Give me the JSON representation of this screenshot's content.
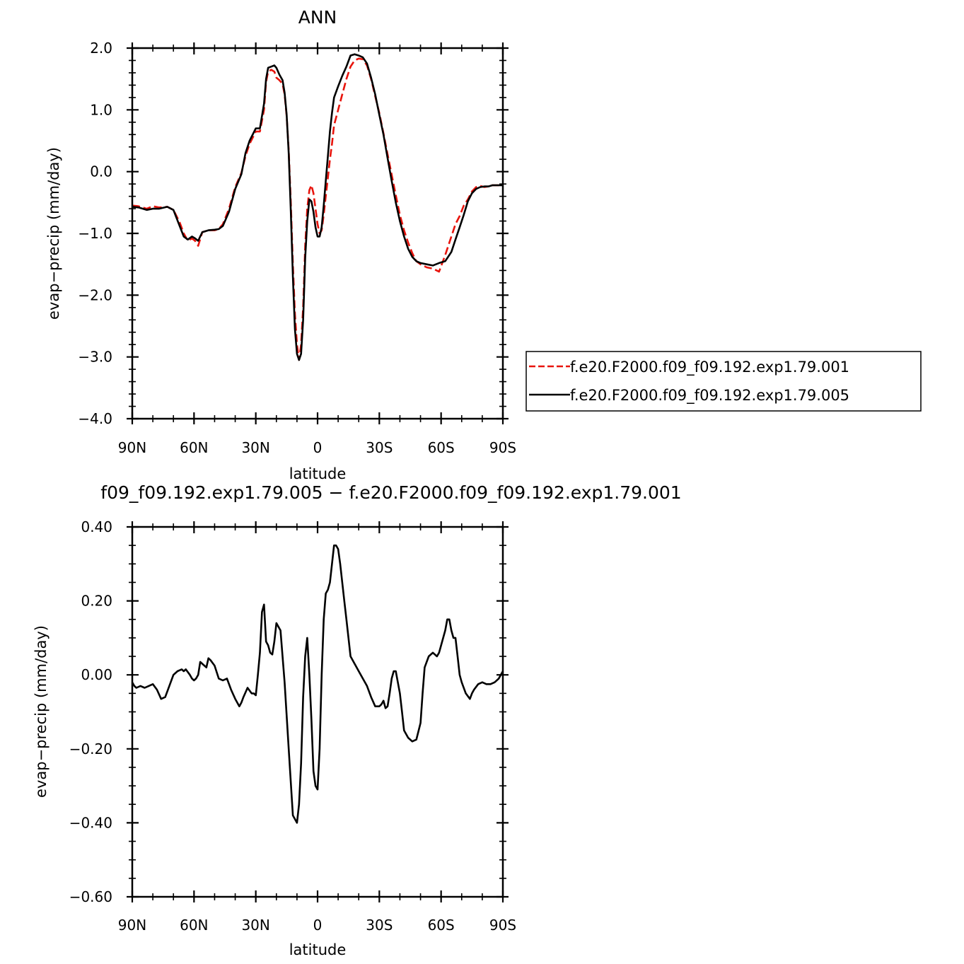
{
  "chart_data": [
    {
      "type": "line",
      "title": "ANN",
      "xlabel": "latitude",
      "ylabel": "evap−precip (mm/day)",
      "xlim": [
        90,
        -90
      ],
      "ylim": [
        -4.0,
        2.0
      ],
      "xticks": [
        90,
        60,
        30,
        0,
        -30,
        -60,
        -90
      ],
      "xtick_labels": [
        "90N",
        "60N",
        "30N",
        "0",
        "30S",
        "60S",
        "90S"
      ],
      "yticks": [
        -4.0,
        -3.0,
        -2.0,
        -1.0,
        0.0,
        1.0,
        2.0
      ],
      "ytick_labels": [
        "−4.0",
        "−3.0",
        "−2.0",
        "−1.0",
        "0.0",
        "1.0",
        "2.0"
      ],
      "grid": false,
      "legend_position": "right",
      "series": [
        {
          "name": "f.e20.F2000.f09_f09.192.exp1.79.001",
          "color": "#e8140c",
          "dash": "dashed",
          "x": [
            90,
            87,
            83,
            80,
            77,
            73,
            70,
            67,
            65,
            63,
            61,
            59.5,
            58,
            56,
            53,
            50,
            48,
            46,
            43,
            40,
            37,
            35,
            33,
            30,
            28,
            26,
            25,
            24,
            22.5,
            21,
            20,
            18.5,
            17,
            16,
            15,
            14,
            13,
            12,
            11,
            10,
            9,
            8,
            7,
            6.5,
            6,
            5,
            4,
            3,
            2,
            1,
            0,
            -1,
            -2,
            -3,
            -4,
            -5,
            -6,
            -7,
            -8,
            -10,
            -12,
            -14,
            -16,
            -18,
            -20,
            -22,
            -24,
            -26,
            -28,
            -30,
            -32,
            -34,
            -36,
            -38,
            -40,
            -42,
            -44,
            -46,
            -48,
            -50,
            -53,
            -56,
            -59,
            -62,
            -65,
            -67,
            -69,
            -71,
            -73,
            -75,
            -77,
            -79,
            -81,
            -83,
            -85,
            -87,
            -90
          ],
          "y": [
            -0.55,
            -0.56,
            -0.6,
            -0.56,
            -0.58,
            -0.57,
            -0.62,
            -0.82,
            -1.0,
            -1.12,
            -1.08,
            -1.12,
            -1.2,
            -0.98,
            -0.95,
            -0.95,
            -0.93,
            -0.85,
            -0.6,
            -0.25,
            -0.02,
            0.25,
            0.45,
            0.65,
            0.65,
            1.0,
            1.45,
            1.62,
            1.65,
            1.62,
            1.52,
            1.48,
            1.42,
            1.25,
            0.9,
            0.35,
            -0.5,
            -1.5,
            -2.3,
            -2.8,
            -3.05,
            -2.8,
            -2.2,
            -1.7,
            -1.2,
            -0.6,
            -0.3,
            -0.22,
            -0.35,
            -0.6,
            -0.85,
            -1.0,
            -0.95,
            -0.7,
            -0.4,
            -0.1,
            0.2,
            0.45,
            0.75,
            1.0,
            1.25,
            1.5,
            1.7,
            1.8,
            1.83,
            1.82,
            1.72,
            1.5,
            1.22,
            0.95,
            0.62,
            0.28,
            -0.05,
            -0.38,
            -0.7,
            -0.95,
            -1.15,
            -1.32,
            -1.45,
            -1.5,
            -1.55,
            -1.57,
            -1.62,
            -1.35,
            -1.05,
            -0.85,
            -0.72,
            -0.55,
            -0.45,
            -0.32,
            -0.25,
            -0.23,
            -0.25,
            -0.24,
            -0.22,
            -0.22,
            -0.22
          ]
        },
        {
          "name": "f.e20.F2000.f09_f09.192.exp1.79.005",
          "color": "#000000",
          "dash": "solid",
          "x": [
            90,
            87,
            83,
            80,
            77,
            73,
            70,
            67,
            65,
            63,
            61,
            59.5,
            58,
            56,
            53,
            50,
            48,
            46,
            43,
            40,
            37,
            35,
            33,
            30,
            28,
            26,
            25,
            24,
            22.5,
            21,
            20,
            18.5,
            17,
            16,
            15,
            14,
            13,
            12,
            11,
            10,
            9,
            8,
            7,
            6.5,
            6,
            5,
            4,
            3,
            2,
            1,
            0,
            -1,
            -2,
            -3,
            -4,
            -5,
            -6,
            -7,
            -8,
            -10,
            -12,
            -14,
            -16,
            -18,
            -20,
            -22,
            -24,
            -26,
            -28,
            -30,
            -32,
            -34,
            -36,
            -38,
            -40,
            -42,
            -44,
            -46,
            -48,
            -50,
            -53,
            -56,
            -59,
            -62,
            -65,
            -67,
            -69,
            -71,
            -73,
            -75,
            -77,
            -79,
            -81,
            -83,
            -85,
            -87,
            -90
          ],
          "y": [
            -0.57,
            -0.58,
            -0.62,
            -0.6,
            -0.6,
            -0.57,
            -0.62,
            -0.88,
            -1.05,
            -1.1,
            -1.05,
            -1.08,
            -1.12,
            -0.98,
            -0.95,
            -0.94,
            -0.93,
            -0.88,
            -0.65,
            -0.28,
            -0.04,
            0.3,
            0.5,
            0.7,
            0.7,
            1.1,
            1.5,
            1.68,
            1.7,
            1.72,
            1.68,
            1.57,
            1.48,
            1.28,
            0.92,
            0.3,
            -0.65,
            -1.7,
            -2.55,
            -2.95,
            -3.05,
            -2.95,
            -2.4,
            -1.9,
            -1.4,
            -0.8,
            -0.45,
            -0.48,
            -0.65,
            -0.9,
            -1.05,
            -1.05,
            -0.9,
            -0.55,
            -0.15,
            0.25,
            0.65,
            0.95,
            1.2,
            1.38,
            1.55,
            1.7,
            1.88,
            1.9,
            1.88,
            1.85,
            1.75,
            1.52,
            1.25,
            0.92,
            0.6,
            0.22,
            -0.15,
            -0.5,
            -0.8,
            -1.05,
            -1.25,
            -1.38,
            -1.45,
            -1.48,
            -1.5,
            -1.52,
            -1.48,
            -1.45,
            -1.3,
            -1.1,
            -0.9,
            -0.7,
            -0.48,
            -0.35,
            -0.28,
            -0.25,
            -0.24,
            -0.24,
            -0.22,
            -0.22,
            -0.22
          ]
        }
      ]
    },
    {
      "type": "line",
      "title": "f09_f09.192.exp1.79.005 − f.e20.F2000.f09_f09.192.exp1.79.001",
      "xlabel": "latitude",
      "ylabel": "evap−precip (mm/day)",
      "xlim": [
        90,
        -90
      ],
      "ylim": [
        -0.6,
        0.4
      ],
      "xticks": [
        90,
        60,
        30,
        0,
        -30,
        -60,
        -90
      ],
      "xtick_labels": [
        "90N",
        "60N",
        "30N",
        "0",
        "30S",
        "60S",
        "90S"
      ],
      "yticks": [
        -0.6,
        -0.4,
        -0.2,
        0.0,
        0.2,
        0.4
      ],
      "ytick_labels": [
        "−0.60",
        "−0.40",
        "−0.20",
        "0.00",
        "0.20",
        "0.40"
      ],
      "grid": false,
      "series": [
        {
          "color": "#000000",
          "dash": "solid",
          "x": [
            90,
            89,
            88,
            86,
            84,
            82,
            80,
            78,
            76,
            74,
            72,
            70,
            68,
            66,
            65,
            64,
            62,
            61,
            60,
            59,
            58,
            57,
            56,
            54,
            53,
            52,
            50,
            48,
            46,
            44,
            42,
            40,
            38,
            37,
            36,
            34,
            32,
            31,
            30,
            29,
            28,
            27,
            26,
            25,
            24,
            23,
            22,
            21,
            20,
            18,
            16,
            14,
            12,
            10,
            9,
            8,
            7,
            6,
            5,
            4,
            3,
            2,
            1,
            0,
            -1,
            -2,
            -3,
            -4,
            -5,
            -6,
            -7,
            -8,
            -9,
            -10,
            -11,
            -12,
            -13,
            -14,
            -15,
            -16,
            -18,
            -20,
            -22,
            -24,
            -26,
            -28,
            -30,
            -31,
            -32,
            -33,
            -34,
            -35,
            -36,
            -37,
            -38,
            -39,
            -40,
            -41,
            -42,
            -44,
            -46,
            -48,
            -50,
            -51,
            -52,
            -54,
            -56,
            -58,
            -59,
            -60,
            -61,
            -62,
            -63,
            -64,
            -65,
            -66,
            -67,
            -68,
            -69,
            -70,
            -72,
            -74,
            -75,
            -76,
            -78,
            -80,
            -82,
            -84,
            -86,
            -88,
            -90
          ],
          "y": [
            -0.02,
            -0.03,
            -0.035,
            -0.03,
            -0.035,
            -0.03,
            -0.025,
            -0.04,
            -0.065,
            -0.06,
            -0.03,
            0.0,
            0.01,
            0.015,
            0.01,
            0.015,
            0.0,
            -0.01,
            -0.015,
            -0.01,
            0.0,
            0.035,
            0.03,
            0.02,
            0.045,
            0.04,
            0.025,
            -0.01,
            -0.015,
            -0.01,
            -0.04,
            -0.065,
            -0.085,
            -0.075,
            -0.06,
            -0.035,
            -0.05,
            -0.05,
            -0.055,
            0.0,
            0.06,
            0.17,
            0.19,
            0.09,
            0.08,
            0.06,
            0.055,
            0.09,
            0.14,
            0.12,
            -0.02,
            -0.2,
            -0.38,
            -0.4,
            -0.35,
            -0.24,
            -0.06,
            0.05,
            0.1,
            0.0,
            -0.12,
            -0.26,
            -0.3,
            -0.31,
            -0.2,
            0.0,
            0.15,
            0.22,
            0.23,
            0.25,
            0.3,
            0.35,
            0.35,
            0.34,
            0.3,
            0.25,
            0.2,
            0.15,
            0.1,
            0.05,
            0.03,
            0.01,
            -0.01,
            -0.03,
            -0.06,
            -0.085,
            -0.085,
            -0.08,
            -0.07,
            -0.09,
            -0.085,
            -0.05,
            -0.01,
            0.01,
            0.01,
            -0.02,
            -0.05,
            -0.1,
            -0.15,
            -0.17,
            -0.18,
            -0.175,
            -0.13,
            -0.05,
            0.02,
            0.05,
            0.06,
            0.05,
            0.06,
            0.08,
            0.1,
            0.12,
            0.15,
            0.15,
            0.12,
            0.1,
            0.1,
            0.05,
            0.0,
            -0.02,
            -0.05,
            -0.065,
            -0.05,
            -0.04,
            -0.025,
            -0.02,
            -0.025,
            -0.025,
            -0.02,
            -0.01,
            0.01
          ]
        }
      ]
    }
  ]
}
